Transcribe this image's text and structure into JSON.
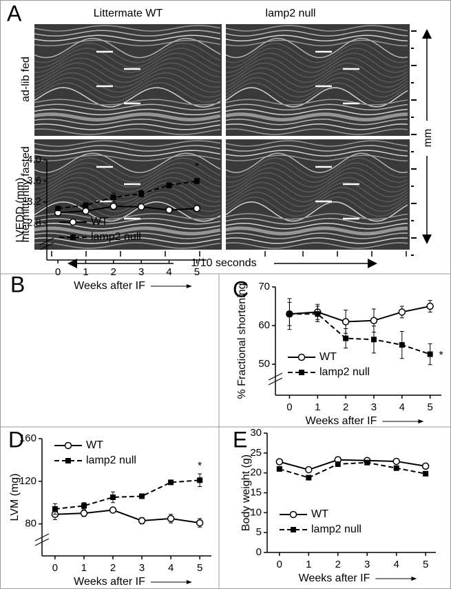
{
  "panel_a": {
    "label": "A",
    "columns": [
      "Littermate WT",
      "lamp2 null"
    ],
    "rows": [
      "ad-lib fed",
      "Intermittently fasted"
    ],
    "y_axis_label": "mm",
    "x_axis_label": "1/10 seconds"
  },
  "chart_data": [
    {
      "type": "line",
      "panel_label": "B",
      "ylabel": "LVEDD (mm)",
      "xlabel": "Weeks after IF",
      "x": [
        0,
        1,
        2,
        3,
        4,
        5
      ],
      "xlim": [
        -0.4,
        5.35
      ],
      "xticks": [
        0,
        1,
        2,
        3,
        4,
        5
      ],
      "ylim": [
        2.1,
        4.0
      ],
      "yticks": [
        2.8,
        3.2,
        3.6,
        {
          "value": 4.0,
          "label": "4.0"
        }
      ],
      "axis_break": true,
      "legend": "lower left",
      "annotation": "*",
      "series": [
        {
          "name": "WT",
          "color": "#000000",
          "marker": "circle",
          "linestyle": "solid",
          "values": [
            3.0,
            3.03,
            3.12,
            3.11,
            3.05,
            3.08
          ],
          "errors": [
            0.03,
            0.03,
            0.05,
            0.05,
            0.03,
            0.02
          ]
        },
        {
          "name": "lamp2 null",
          "color": "#000000",
          "marker": "square",
          "linestyle": "dashed",
          "values": [
            3.08,
            3.14,
            3.29,
            3.36,
            3.52,
            3.6
          ],
          "errors": [
            0.04,
            0.04,
            0.08,
            0.06,
            0.05,
            0.05
          ]
        }
      ]
    },
    {
      "type": "line",
      "panel_label": "C",
      "ylabel": "% Fractional shortening",
      "xlabel": "Weeks after IF",
      "x": [
        0,
        1,
        2,
        3,
        4,
        5
      ],
      "xlim": [
        -0.5,
        5.4
      ],
      "xticks": [
        0,
        1,
        2,
        3,
        4,
        5
      ],
      "ylim": [
        42,
        70
      ],
      "yticks": [
        50,
        60,
        70
      ],
      "axis_break": true,
      "legend": "lower left",
      "annotation": "*",
      "series": [
        {
          "name": "WT",
          "color": "#000000",
          "marker": "circle",
          "linestyle": "solid",
          "values": [
            63,
            63.5,
            61,
            61.3,
            63.5,
            65
          ],
          "errors": [
            4,
            2,
            3,
            3,
            1.5,
            1.5
          ]
        },
        {
          "name": "lamp2 null",
          "color": "#000000",
          "marker": "square",
          "linestyle": "dashed",
          "values": [
            63,
            63,
            56.7,
            56.4,
            55,
            52.6
          ],
          "errors": [
            3,
            2,
            2.5,
            3.5,
            3.5,
            2.7
          ]
        }
      ]
    },
    {
      "type": "line",
      "panel_label": "D",
      "ylabel": "LVM (mg)",
      "xlabel": "Weeks after IF",
      "x": [
        0,
        1,
        2,
        3,
        4,
        5
      ],
      "xlim": [
        -0.45,
        5.4
      ],
      "xticks": [
        0,
        1,
        2,
        3,
        4,
        5
      ],
      "ylim": [
        50,
        160
      ],
      "yticks": [
        80,
        120,
        160
      ],
      "axis_break": true,
      "legend": "upper left",
      "annotation": "*",
      "series": [
        {
          "name": "WT",
          "color": "#000000",
          "marker": "circle",
          "linestyle": "solid",
          "values": [
            89,
            90,
            93,
            83,
            85,
            81
          ],
          "errors": [
            5,
            3,
            2,
            3,
            4,
            4
          ]
        },
        {
          "name": "lamp2 null",
          "color": "#000000",
          "marker": "square",
          "linestyle": "dashed",
          "values": [
            94,
            97,
            105,
            106,
            119,
            121
          ],
          "errors": [
            5,
            3,
            5,
            2,
            2,
            6
          ]
        }
      ]
    },
    {
      "type": "line",
      "panel_label": "E",
      "ylabel": "Body weight (g)",
      "xlabel": "Weeks after IF",
      "x": [
        0,
        1,
        2,
        3,
        4,
        5
      ],
      "xlim": [
        -0.42,
        5.35
      ],
      "xticks": [
        0,
        1,
        2,
        3,
        4,
        5
      ],
      "ylim": [
        0,
        30
      ],
      "yticks": [
        0,
        5,
        10,
        15,
        20,
        25,
        30
      ],
      "axis_break": false,
      "legend": "lower left",
      "series": [
        {
          "name": "WT",
          "color": "#000000",
          "marker": "circle",
          "linestyle": "solid",
          "values": [
            22.8,
            20.8,
            23.3,
            23.1,
            22.9,
            21.7
          ]
        },
        {
          "name": "lamp2 null",
          "color": "#000000",
          "marker": "square",
          "linestyle": "dashed",
          "values": [
            21.0,
            18.8,
            22.2,
            22.6,
            21.2,
            19.8
          ]
        }
      ]
    }
  ]
}
